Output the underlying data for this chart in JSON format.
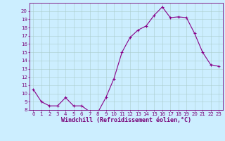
{
  "x": [
    0,
    1,
    2,
    3,
    4,
    5,
    6,
    7,
    8,
    9,
    10,
    11,
    12,
    13,
    14,
    15,
    16,
    17,
    18,
    19,
    20,
    21,
    22,
    23
  ],
  "y": [
    10.5,
    9.0,
    8.5,
    8.5,
    9.5,
    8.5,
    8.5,
    7.8,
    7.7,
    9.5,
    11.8,
    15.0,
    16.8,
    17.7,
    18.2,
    19.5,
    20.5,
    19.2,
    19.3,
    19.2,
    17.3,
    15.0,
    13.5,
    13.3
  ],
  "line_color": "#880088",
  "marker": "+",
  "marker_size": 3.0,
  "bg_color": "#cceeff",
  "grid_color": "#aacccc",
  "xlabel": "Windchill (Refroidissement éolien,°C)",
  "ylim": [
    8,
    21
  ],
  "xlim": [
    -0.5,
    23.5
  ],
  "yticks": [
    8,
    9,
    10,
    11,
    12,
    13,
    14,
    15,
    16,
    17,
    18,
    19,
    20
  ],
  "xticks": [
    0,
    1,
    2,
    3,
    4,
    5,
    6,
    7,
    8,
    9,
    10,
    11,
    12,
    13,
    14,
    15,
    16,
    17,
    18,
    19,
    20,
    21,
    22,
    23
  ],
  "tick_fontsize": 5.0,
  "xlabel_fontsize": 6.0,
  "tick_color": "#770077",
  "spine_color": "#770077",
  "linewidth": 0.8,
  "marker_color": "#880088"
}
